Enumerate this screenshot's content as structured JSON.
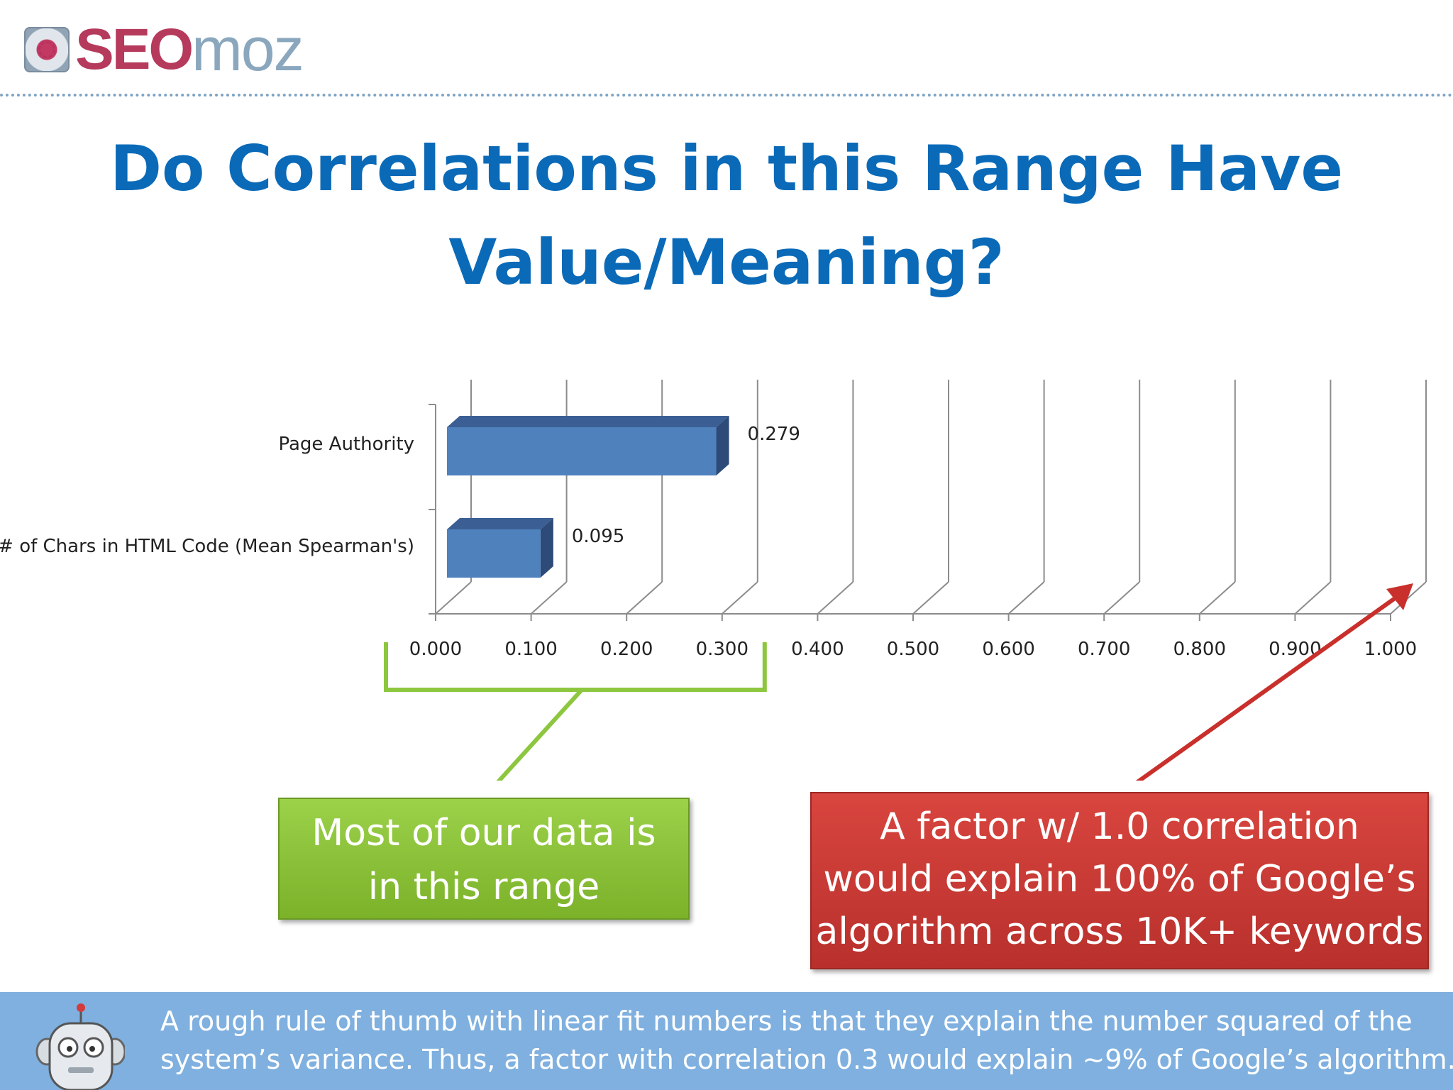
{
  "logo": {
    "seo": "SEO",
    "moz": "moz"
  },
  "title": {
    "line1": "Do Correlations in this Range Have",
    "line2": "Value/Meaning?"
  },
  "chart_data": {
    "type": "bar",
    "orientation": "horizontal",
    "style": "3d",
    "categories": [
      "Page Authority",
      "# of Chars in HTML Code (Mean Spearman's)"
    ],
    "values": [
      0.279,
      0.095
    ],
    "value_labels": [
      "0.279",
      "0.095"
    ],
    "x_ticks": [
      "0.000",
      "0.100",
      "0.200",
      "0.300",
      "0.400",
      "0.500",
      "0.600",
      "0.700",
      "0.800",
      "0.900",
      "1.000"
    ],
    "xlim": [
      0,
      1
    ],
    "grid": true,
    "bar_color": "#4f81bd",
    "title": "",
    "xlabel": "",
    "ylabel": ""
  },
  "callouts": {
    "green": {
      "line1": "Most of our data is",
      "line2": "in this range",
      "color": "#8dc63f",
      "bracket_range": [
        0.0,
        0.3
      ]
    },
    "red": {
      "line1": "A factor w/ 1.0 correlation",
      "line2": "would explain 100% of Google’s",
      "line3": "algorithm across 10K+ keywords",
      "color": "#c9302c",
      "points_to": 1.0
    }
  },
  "footer": {
    "line1": "A rough rule of thumb with linear fit numbers is that they explain the number squared of the",
    "line2": "system’s variance. Thus, a factor with correlation 0.3 would explain ~9% of Google’s algorithm."
  }
}
